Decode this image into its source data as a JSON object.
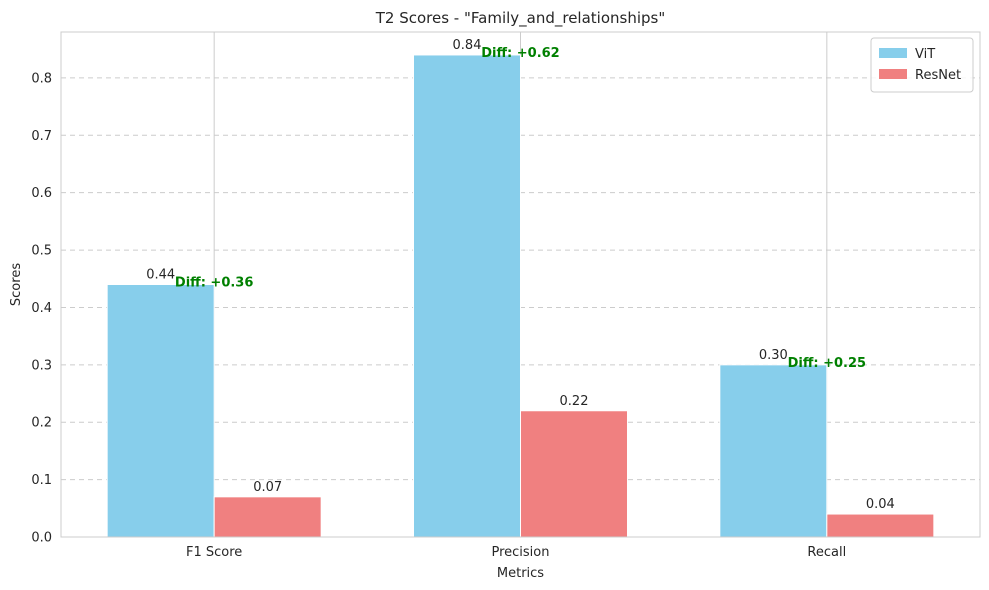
{
  "chart_data": {
    "type": "bar",
    "title": "T2 Scores - \"Family_and_relationships\"",
    "xlabel": "Metrics",
    "ylabel": "Scores",
    "categories": [
      "F1 Score",
      "Precision",
      "Recall"
    ],
    "series": [
      {
        "name": "ViT",
        "values": [
          0.44,
          0.84,
          0.3
        ],
        "value_labels": [
          "0.44",
          "0.84",
          "0.30"
        ],
        "color": "#87ceeb"
      },
      {
        "name": "ResNet",
        "values": [
          0.07,
          0.22,
          0.04
        ],
        "value_labels": [
          "0.07",
          "0.22",
          "0.04"
        ],
        "color": "#f08080"
      }
    ],
    "annotations": [
      {
        "category": "F1 Score",
        "text": "Diff: +0.36",
        "color": "#008000"
      },
      {
        "category": "Precision",
        "text": "Diff: +0.62",
        "color": "#008000"
      },
      {
        "category": "Recall",
        "text": "Diff: +0.25",
        "color": "#008000"
      }
    ],
    "ylim": [
      0,
      0.88
    ],
    "yticks": [
      "0.0",
      "0.1",
      "0.2",
      "0.3",
      "0.4",
      "0.5",
      "0.6",
      "0.7",
      "0.8"
    ],
    "grid": {
      "y": "dashed",
      "x": "solid"
    },
    "legend_position": "top-right"
  }
}
